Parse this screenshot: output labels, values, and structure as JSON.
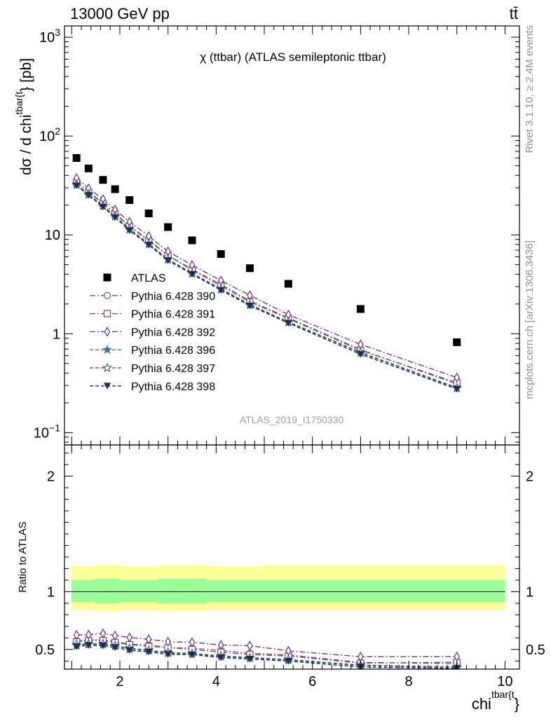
{
  "header": {
    "energy_label": "13000 GeV pp",
    "process_label": "tt̄"
  },
  "side_labels": {
    "rivet": "Rivet 3.1.10, ≥ 2.4M events",
    "mcplots": "mcplots.cern.ch [arXiv:1306.3436]"
  },
  "analysis_label": "ATLAS_2019_I1750330",
  "colors": {
    "data": "#000000",
    "p390": "#7b4a78",
    "p391": "#7a4a55",
    "p392": "#6a2c85",
    "p396": "#4d7a8a",
    "p397": "#2e4a70",
    "p398": "#1f2a55",
    "band_outer": "#ffff99",
    "band_inner": "#99ff99"
  },
  "chart_data": [
    {
      "type": "scatter",
      "title": "χ (ttbar) (ATLAS semileptonic ttbar)",
      "xlabel": "chi^{tbar{t}}",
      "ylabel": "dσ / d chi^{tbar{t}} [pb]",
      "y_scale": "log",
      "xlim": [
        0.85,
        10.3
      ],
      "ylim": [
        0.075,
        1300
      ],
      "y_ticks": [
        "10^{-1}",
        "1",
        "10",
        "10^{2}",
        "10^{3}"
      ],
      "legend_position": "middle-left",
      "x": [
        1.1,
        1.35,
        1.65,
        1.9,
        2.2,
        2.6,
        3.0,
        3.5,
        4.1,
        4.7,
        5.5,
        7.0,
        9.0
      ],
      "series": [
        {
          "name": "ATLAS",
          "marker": "square-filled",
          "values": [
            60,
            47,
            36,
            29,
            22.5,
            16.5,
            12,
            8.8,
            6.4,
            4.6,
            3.2,
            1.78,
            0.82
          ]
        },
        {
          "name": "Pythia 6.428 390",
          "marker": "circle-open",
          "values": [
            34.5,
            27.5,
            21.0,
            16.5,
            12.3,
            8.9,
            6.2,
            4.5,
            3.15,
            2.15,
            1.45,
            0.69,
            0.31
          ]
        },
        {
          "name": "Pythia 6.428 391",
          "marker": "square-open",
          "values": [
            34.0,
            27.2,
            20.8,
            16.3,
            12.2,
            8.7,
            6.2,
            4.4,
            3.05,
            2.1,
            1.42,
            0.68,
            0.32
          ]
        },
        {
          "name": "Pythia 6.428 392",
          "marker": "diamond-open",
          "values": [
            37.5,
            29.5,
            23.0,
            18.0,
            13.6,
            9.7,
            6.8,
            4.95,
            3.45,
            2.45,
            1.56,
            0.78,
            0.36
          ]
        },
        {
          "name": "Pythia 6.428 396",
          "marker": "star-filled",
          "values": [
            32.0,
            25.5,
            19.5,
            15.3,
            11.3,
            8.05,
            5.6,
            4.05,
            2.8,
            1.95,
            1.3,
            0.64,
            0.28
          ]
        },
        {
          "name": "Pythia 6.428 397",
          "marker": "star-open",
          "values": [
            32.5,
            25.8,
            19.8,
            15.5,
            11.5,
            8.15,
            5.7,
            4.1,
            2.85,
            1.98,
            1.32,
            0.65,
            0.285
          ]
        },
        {
          "name": "Pythia 6.428 398",
          "marker": "triangle-down-filled",
          "values": [
            31.5,
            25.2,
            19.2,
            15.0,
            11.1,
            7.9,
            5.5,
            4.0,
            2.75,
            1.92,
            1.28,
            0.62,
            0.275
          ]
        }
      ]
    },
    {
      "type": "line",
      "ylabel": "Ratio to ATLAS",
      "xlabel": "chi^{tbar{t}}",
      "xlim": [
        0.85,
        10.3
      ],
      "ylim": [
        0.33,
        2.27
      ],
      "x_ticks": [
        "2",
        "4",
        "6",
        "8",
        "10"
      ],
      "y_ticks": [
        "0.5",
        "1",
        "2"
      ],
      "x": [
        1.1,
        1.35,
        1.65,
        1.9,
        2.2,
        2.6,
        3.0,
        3.5,
        4.1,
        4.7,
        5.5,
        7.0,
        9.0
      ],
      "bands": {
        "edges": [
          1.0,
          1.25,
          1.5,
          1.8,
          2.0,
          2.4,
          2.8,
          3.2,
          3.8,
          4.4,
          5.0,
          6.0,
          8.0,
          10.0
        ],
        "outer_lower": [
          0.84,
          0.84,
          0.83,
          0.83,
          0.84,
          0.84,
          0.83,
          0.83,
          0.84,
          0.84,
          0.84,
          0.84,
          0.84
        ],
        "outer_upper": [
          1.22,
          1.22,
          1.23,
          1.23,
          1.22,
          1.22,
          1.23,
          1.23,
          1.22,
          1.22,
          1.23,
          1.23,
          1.23
        ],
        "inner_lower": [
          0.91,
          0.91,
          0.9,
          0.9,
          0.91,
          0.91,
          0.9,
          0.9,
          0.91,
          0.91,
          0.91,
          0.91,
          0.91
        ],
        "inner_upper": [
          1.1,
          1.1,
          1.11,
          1.11,
          1.1,
          1.1,
          1.11,
          1.11,
          1.1,
          1.1,
          1.1,
          1.1,
          1.1
        ]
      },
      "series": [
        {
          "name": "Pythia 6.428 390",
          "values": [
            0.575,
            0.585,
            0.583,
            0.568,
            0.547,
            0.539,
            0.517,
            0.511,
            0.492,
            0.467,
            0.453,
            0.388,
            0.378
          ]
        },
        {
          "name": "Pythia 6.428 391",
          "values": [
            0.567,
            0.579,
            0.578,
            0.562,
            0.542,
            0.527,
            0.517,
            0.5,
            0.477,
            0.457,
            0.444,
            0.382,
            0.39
          ]
        },
        {
          "name": "Pythia 6.428 392",
          "values": [
            0.625,
            0.628,
            0.639,
            0.621,
            0.604,
            0.588,
            0.567,
            0.563,
            0.539,
            0.533,
            0.488,
            0.438,
            0.439
          ]
        },
        {
          "name": "Pythia 6.428 396",
          "values": [
            0.533,
            0.543,
            0.542,
            0.528,
            0.502,
            0.488,
            0.467,
            0.46,
            0.438,
            0.424,
            0.406,
            0.36,
            0.341
          ]
        },
        {
          "name": "Pythia 6.428 397",
          "values": [
            0.542,
            0.549,
            0.55,
            0.534,
            0.511,
            0.494,
            0.475,
            0.466,
            0.445,
            0.43,
            0.413,
            0.365,
            0.348
          ]
        },
        {
          "name": "Pythia 6.428 398",
          "values": [
            0.525,
            0.536,
            0.533,
            0.517,
            0.493,
            0.479,
            0.458,
            0.455,
            0.43,
            0.417,
            0.4,
            0.348,
            0.335
          ]
        }
      ]
    }
  ]
}
